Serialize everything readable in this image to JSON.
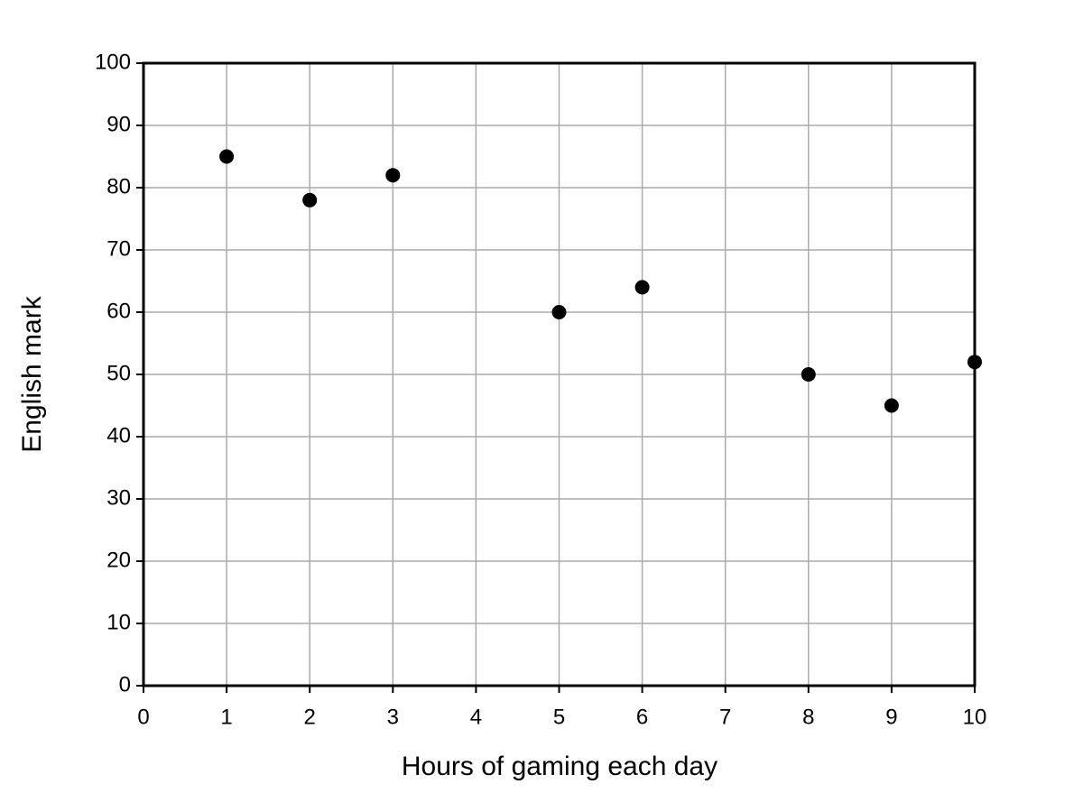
{
  "chart_data": {
    "type": "scatter",
    "x_label": "Hours of gaming each day",
    "y_label": "English mark",
    "x": [
      1,
      2,
      3,
      5,
      6,
      8,
      9,
      10
    ],
    "values": [
      85,
      78,
      82,
      60,
      64,
      50,
      45,
      52
    ],
    "color": "#000000",
    "xlim": [
      0,
      10
    ],
    "xticks": [
      0,
      1,
      2,
      3,
      4,
      5,
      6,
      7,
      8,
      9,
      10
    ],
    "ylim": [
      0,
      100
    ],
    "yticks": [
      0,
      10,
      20,
      30,
      40,
      50,
      60,
      70,
      80,
      90,
      100
    ],
    "grid": true
  }
}
